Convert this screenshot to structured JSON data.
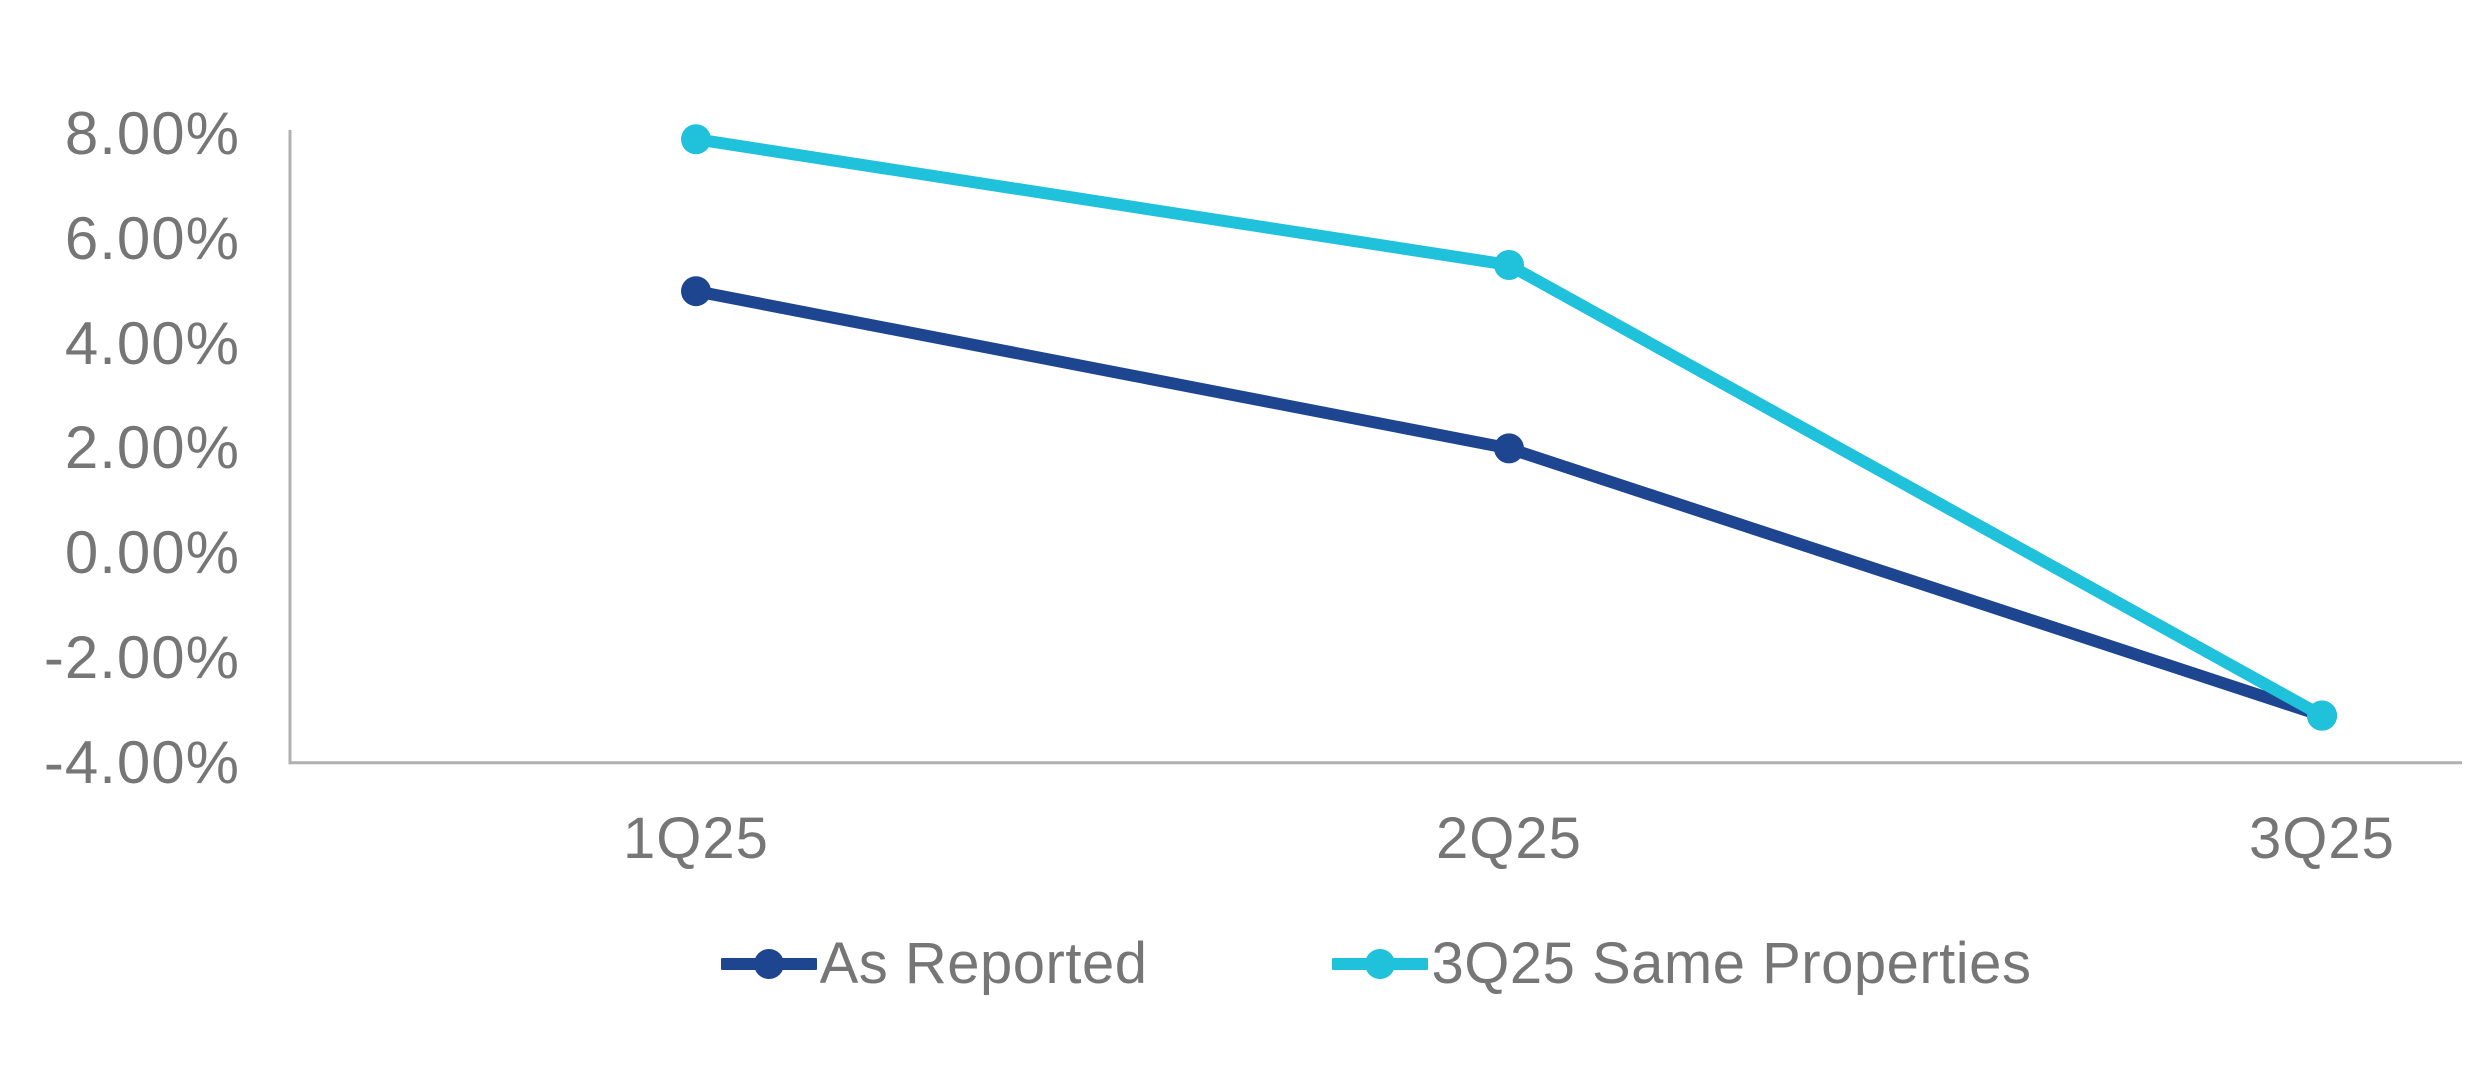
{
  "chart_data": {
    "type": "line",
    "title": "",
    "xlabel": "",
    "ylabel": "",
    "categories": [
      "1Q25",
      "2Q25",
      "3Q25"
    ],
    "series": [
      {
        "name": "As Reported",
        "color": "#1E4590",
        "values": [
          5.0,
          2.0,
          -3.1
        ]
      },
      {
        "name": "3Q25 Same Properties",
        "color": "#1FC1DB",
        "values": [
          7.9,
          5.5,
          -3.1
        ]
      }
    ],
    "ylim": [
      -4,
      8
    ],
    "ytick_step": 2,
    "ytick_labels": [
      "8.00%",
      "6.00%",
      "4.00%",
      "2.00%",
      "0.00%",
      "-2.00%",
      "-4.00%"
    ],
    "grid": false,
    "marker": "circle",
    "legend_position": "bottom",
    "axis_color": "#B0B0B0",
    "text_color": "#767676",
    "background": "#FFFFFF"
  }
}
